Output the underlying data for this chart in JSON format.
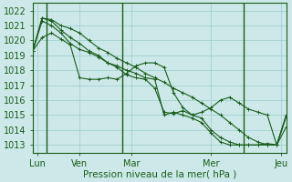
{
  "title": "",
  "xlabel": "Pression niveau de la mer( hPa )",
  "ylabel": "",
  "bg_color": "#cce8e8",
  "grid_color": "#99cccc",
  "line_color": "#1a5c1a",
  "ylim": [
    1012.5,
    1022.5
  ],
  "yticks": [
    1013,
    1014,
    1015,
    1016,
    1017,
    1018,
    1019,
    1020,
    1021,
    1022
  ],
  "xtick_labels": [
    "Lun",
    "Ven",
    "Mar",
    "Mer",
    "Jeu"
  ],
  "series1": [
    1019.3,
    1021.5,
    1021.3,
    1020.7,
    1020.2,
    1019.8,
    1019.3,
    1019.0,
    1018.5,
    1018.2,
    1017.7,
    1017.5,
    1017.4,
    1016.8,
    1015.2,
    1015.1,
    1015.3,
    1015.0,
    1014.8,
    1014.0,
    1013.5,
    1013.2,
    1013.0,
    1013.0,
    1013.0,
    1013.1,
    1013.0,
    1014.9
  ],
  "series2": [
    1019.3,
    1021.3,
    1021.0,
    1020.5,
    1019.8,
    1019.4,
    1019.2,
    1018.9,
    1018.5,
    1018.3,
    1018.0,
    1017.8,
    1017.5,
    1017.4,
    1015.0,
    1015.2,
    1015.0,
    1014.8,
    1014.5,
    1013.8,
    1013.2,
    1013.0,
    1013.0,
    1013.0,
    1013.0,
    1013.0,
    1013.0,
    1014.2
  ],
  "series3": [
    1019.3,
    1021.5,
    1021.4,
    1021.0,
    1020.8,
    1020.5,
    1020.0,
    1019.5,
    1019.2,
    1018.8,
    1018.5,
    1018.2,
    1017.8,
    1017.5,
    1017.2,
    1016.8,
    1016.5,
    1016.2,
    1015.8,
    1015.4,
    1015.0,
    1014.5,
    1014.0,
    1013.5,
    1013.2,
    1013.0,
    1013.0,
    1014.9
  ],
  "series4": [
    1019.3,
    1020.2,
    1020.5,
    1020.1,
    1019.7,
    1017.5,
    1017.4,
    1017.4,
    1017.5,
    1017.4,
    1017.8,
    1018.3,
    1018.5,
    1018.5,
    1018.2,
    1016.5,
    1015.5,
    1015.0,
    1015.2,
    1015.5,
    1016.0,
    1016.2,
    1015.8,
    1015.4,
    1015.2,
    1015.0,
    1013.0,
    1015.0
  ],
  "n_points": 28,
  "vline_positions": [
    1.5,
    9.5,
    22.5
  ],
  "xtick_raw": [
    0.5,
    5.0,
    10.5,
    19.0,
    26.5
  ]
}
